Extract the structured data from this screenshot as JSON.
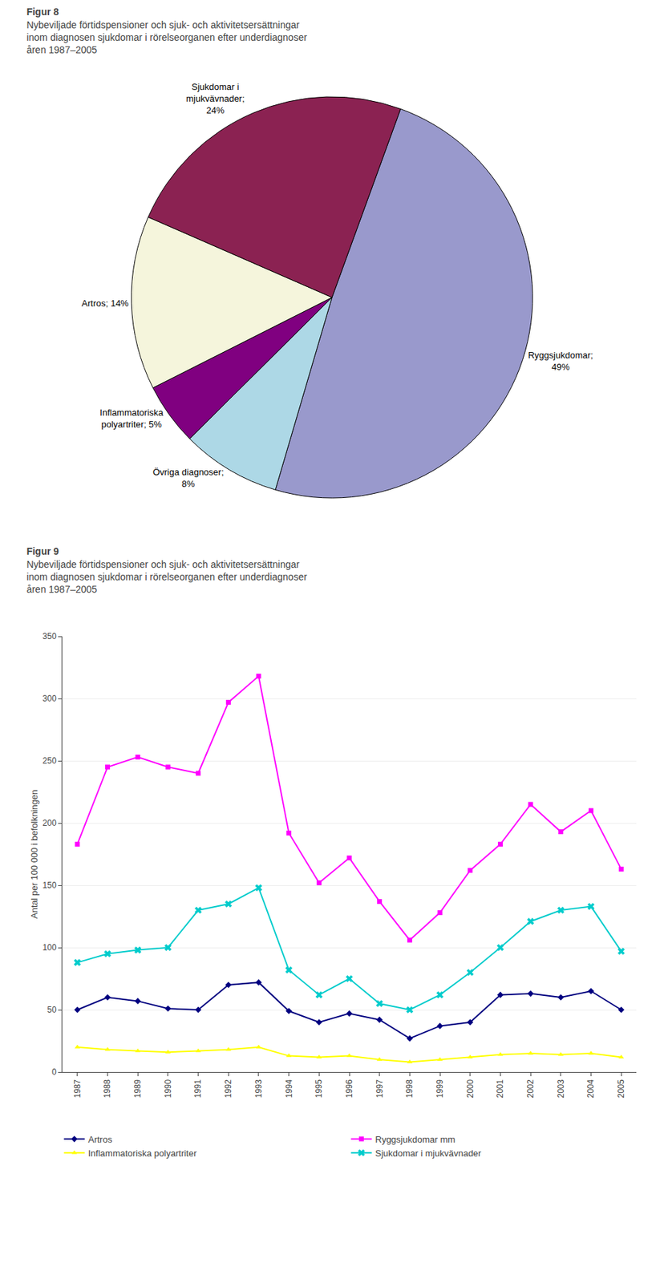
{
  "chart_data": [
    {
      "type": "pie",
      "title": "Figur 8",
      "subtitle": "Nybeviljade förtidspensioner och sjuk- och aktivitetsersättningar\ninom diagnosen sjukdomar i rörelseorganen efter underdiagnoser\nåren 1987–2005",
      "values": [
        49,
        8,
        5,
        14,
        24
      ],
      "value_labels": [
        "Ryggsjukdomar;\n49%",
        "Övriga diagnoser;\n8%",
        "Inflammatoriska\npolyartriter; 5%",
        "Artros; 14%",
        "Sjukdomar i\nmjukvävnader;\n24%"
      ],
      "colors": [
        "#9999CC",
        "#ADD8E6",
        "#800080",
        "#F5F5DC",
        "#8B2252"
      ],
      "data_labels": true
    },
    {
      "type": "line",
      "title": "Figur 9",
      "subtitle": "Nybeviljade förtidspensioner och sjuk- och aktivitetsersättningar\ninom diagnosen sjukdomar i rörelseorganen efter underdiagnoser\nåren 1987–2005",
      "ylabel": "Antal per 100 000 i befolkningen",
      "x": [
        1987,
        1988,
        1989,
        1990,
        1991,
        1992,
        1993,
        1994,
        1995,
        1996,
        1997,
        1998,
        1999,
        2000,
        2001,
        2002,
        2003,
        2004,
        2005
      ],
      "xlim": [
        1986.5,
        2005.5
      ],
      "xticks": [
        1987,
        1988,
        1989,
        1990,
        1991,
        1992,
        1993,
        1994,
        1995,
        1996,
        1997,
        1998,
        1999,
        2000,
        2001,
        2002,
        2003,
        2004,
        2005
      ],
      "ylim": [
        0,
        350
      ],
      "yticks": [
        0,
        50,
        100,
        150,
        200,
        250,
        300,
        350
      ],
      "grid": "y",
      "legend": "bottom",
      "series": [
        {
          "name": "Artros",
          "color": "#000080",
          "marker": "diamond",
          "values": [
            50,
            60,
            57,
            51,
            50,
            70,
            72,
            49,
            40,
            47,
            42,
            27,
            37,
            40,
            62,
            63,
            60,
            65,
            50
          ]
        },
        {
          "name": "Ryggsjukdomar mm",
          "color": "#FF00FF",
          "marker": "square",
          "values": [
            183,
            245,
            253,
            245,
            240,
            297,
            318,
            192,
            152,
            172,
            137,
            106,
            128,
            162,
            183,
            215,
            193,
            210,
            163
          ]
        },
        {
          "name": "Inflammatoriska polyartriter",
          "color": "#FFFF00",
          "marker": "triangle-up",
          "values": [
            20,
            18,
            17,
            16,
            17,
            18,
            20,
            13,
            12,
            13,
            10,
            8,
            10,
            12,
            14,
            15,
            14,
            15,
            12
          ]
        },
        {
          "name": "Sjukdomar i mjukvävnader",
          "color": "#00CCCC",
          "marker": "x",
          "values": [
            88,
            95,
            98,
            100,
            130,
            135,
            148,
            82,
            62,
            75,
            55,
            50,
            62,
            80,
            100,
            121,
            130,
            133,
            97
          ]
        }
      ]
    }
  ]
}
